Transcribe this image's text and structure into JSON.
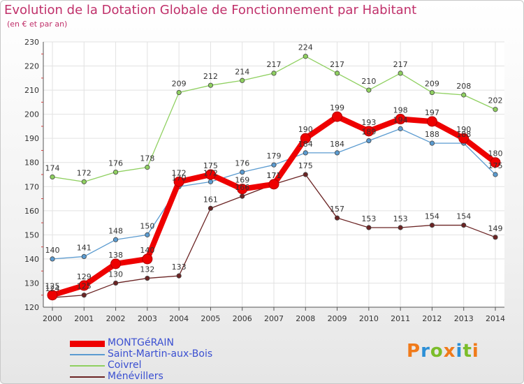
{
  "brand": "Proxiti",
  "chart_data": {
    "type": "line",
    "title": "Evolution de la Dotation Globale de Fonctionnement par Habitant",
    "subtitle": "(en € et par an)",
    "xlabel": "",
    "ylabel": "",
    "ylim": [
      120,
      230
    ],
    "yticks": [
      120,
      130,
      140,
      150,
      160,
      170,
      180,
      190,
      200,
      210,
      220,
      230
    ],
    "grid": true,
    "x": [
      "2000",
      "2001",
      "2002",
      "2003",
      "2004",
      "2005",
      "2006",
      "2007",
      "2008",
      "2009",
      "2010",
      "2011",
      "2012",
      "2013",
      "2014"
    ],
    "series": [
      {
        "name": "MONTGéRAIN",
        "color": "#ee0000",
        "values": [
          125,
          129,
          138,
          140,
          172,
          175,
          169,
          171,
          190,
          199,
          193,
          198,
          197,
          190,
          180
        ]
      },
      {
        "name": "Saint-Martin-aux-Bois",
        "color": "#5b9bd0",
        "values": [
          140,
          141,
          148,
          150,
          170,
          172,
          176,
          179,
          184,
          184,
          189,
          194,
          188,
          188,
          175
        ]
      },
      {
        "name": "Coivrel",
        "color": "#8fd060",
        "values": [
          174,
          172,
          176,
          178,
          209,
          212,
          214,
          217,
          224,
          217,
          210,
          217,
          209,
          208,
          202
        ]
      },
      {
        "name": "Ménévillers",
        "color": "#6b2424",
        "values": [
          124,
          125,
          130,
          132,
          133,
          161,
          166,
          171,
          175,
          157,
          153,
          153,
          154,
          154,
          149
        ]
      }
    ]
  }
}
